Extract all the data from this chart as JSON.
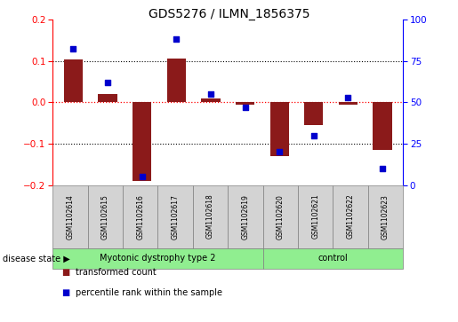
{
  "title": "GDS5276 / ILMN_1856375",
  "samples": [
    "GSM1102614",
    "GSM1102615",
    "GSM1102616",
    "GSM1102617",
    "GSM1102618",
    "GSM1102619",
    "GSM1102620",
    "GSM1102621",
    "GSM1102622",
    "GSM1102623"
  ],
  "transformed_count": [
    0.103,
    0.02,
    -0.19,
    0.105,
    0.01,
    -0.005,
    -0.13,
    -0.055,
    -0.005,
    -0.115
  ],
  "percentile_rank": [
    82,
    62,
    5,
    88,
    55,
    47,
    20,
    30,
    53,
    10
  ],
  "group_boundaries": [
    0,
    6,
    10
  ],
  "group_labels": [
    "Myotonic dystrophy type 2",
    "control"
  ],
  "group_colors": [
    "#90EE90",
    "#90EE90"
  ],
  "bar_color": "#8B1A1A",
  "dot_color": "#0000CD",
  "ylim_left": [
    -0.2,
    0.2
  ],
  "ylim_right": [
    0,
    100
  ],
  "yticks_left": [
    -0.2,
    -0.1,
    0.0,
    0.1,
    0.2
  ],
  "yticks_right": [
    0,
    25,
    50,
    75,
    100
  ],
  "disease_state_label": "disease state",
  "legend_items": [
    {
      "label": "transformed count",
      "color": "#8B1A1A"
    },
    {
      "label": "percentile rank within the sample",
      "color": "#0000CD"
    }
  ],
  "bar_width": 0.55,
  "sample_box_color": "#D3D3D3",
  "spine_color": "#000000",
  "title_fontsize": 10,
  "tick_fontsize": 7.5,
  "sample_fontsize": 5.5,
  "legend_fontsize": 7,
  "disease_fontsize": 7
}
